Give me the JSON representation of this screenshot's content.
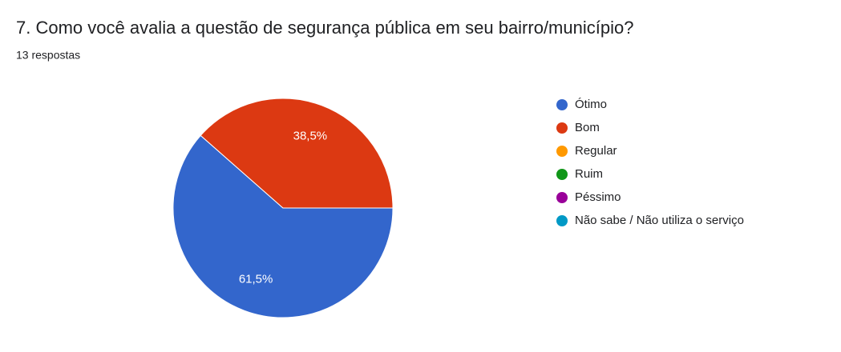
{
  "chart_data": {
    "type": "pie",
    "title": "7. Como você avalia a questão de segurança pública em seu bairro/município?",
    "subtitle": "13 respostas",
    "categories": [
      "Ótimo",
      "Bom",
      "Regular",
      "Ruim",
      "Péssimo",
      "Não sabe / Não utiliza o serviço"
    ],
    "values": [
      61.5,
      38.5,
      0,
      0,
      0,
      0
    ],
    "value_labels": [
      "61,5%",
      "38,5%",
      null,
      null,
      null,
      null
    ],
    "colors": [
      "#3366cc",
      "#dc3912",
      "#ff9900",
      "#109618",
      "#990099",
      "#0099c6"
    ],
    "legend": "right"
  }
}
